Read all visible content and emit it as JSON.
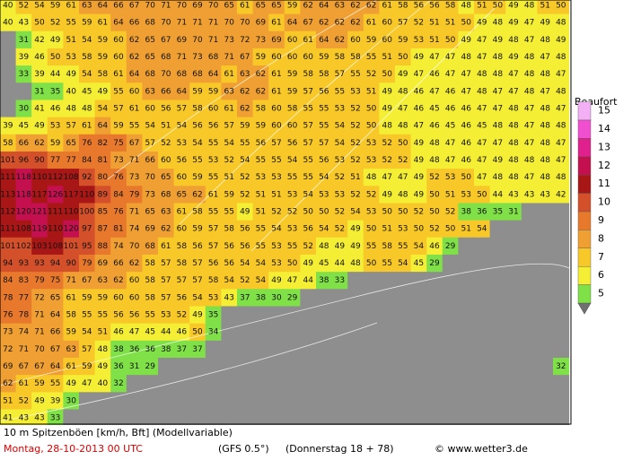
{
  "map": {
    "rows": [
      [
        40,
        52,
        54,
        59,
        61,
        63,
        64,
        66,
        67,
        70,
        71,
        70,
        69,
        70,
        65,
        61,
        65,
        65,
        59,
        62,
        64,
        63,
        62,
        62,
        61,
        58,
        56,
        56,
        58,
        48,
        51,
        50,
        49,
        48,
        51,
        50
      ],
      [
        40,
        43,
        50,
        52,
        55,
        59,
        61,
        64,
        66,
        68,
        70,
        71,
        71,
        71,
        70,
        70,
        69,
        61,
        64,
        67,
        62,
        62,
        62,
        61,
        60,
        57,
        52,
        51,
        51,
        50,
        49,
        48,
        49,
        47,
        49,
        48
      ],
      [
        null,
        31,
        42,
        49,
        51,
        54,
        59,
        60,
        62,
        65,
        67,
        69,
        70,
        71,
        73,
        72,
        73,
        69,
        60,
        61,
        64,
        62,
        60,
        59,
        60,
        59,
        53,
        51,
        50,
        49,
        47,
        49,
        48,
        47,
        48,
        49
      ],
      [
        null,
        39,
        46,
        50,
        53,
        58,
        59,
        60,
        62,
        65,
        68,
        71,
        73,
        68,
        71,
        67,
        59,
        60,
        60,
        60,
        59,
        58,
        58,
        55,
        51,
        50,
        49,
        47,
        47,
        48,
        47,
        48,
        49,
        48,
        47,
        48
      ],
      [
        null,
        33,
        39,
        44,
        49,
        54,
        58,
        61,
        64,
        68,
        70,
        68,
        68,
        64,
        61,
        63,
        62,
        61,
        59,
        58,
        58,
        57,
        55,
        52,
        50,
        49,
        47,
        46,
        47,
        47,
        48,
        48,
        47,
        48,
        48,
        47
      ],
      [
        null,
        null,
        31,
        35,
        40,
        45,
        49,
        55,
        60,
        63,
        66,
        64,
        59,
        59,
        63,
        62,
        62,
        61,
        59,
        57,
        56,
        55,
        53,
        51,
        49,
        48,
        46,
        47,
        46,
        47,
        48,
        47,
        47,
        48,
        47,
        48
      ],
      [
        null,
        30,
        41,
        46,
        48,
        48,
        54,
        57,
        61,
        60,
        56,
        57,
        58,
        60,
        61,
        62,
        58,
        60,
        58,
        55,
        55,
        53,
        52,
        50,
        49,
        47,
        46,
        45,
        46,
        46,
        47,
        47,
        48,
        47,
        48,
        47
      ],
      [
        39,
        45,
        49,
        53,
        57,
        61,
        64,
        59,
        55,
        54,
        51,
        54,
        56,
        56,
        57,
        59,
        59,
        60,
        60,
        57,
        55,
        54,
        52,
        50,
        48,
        48,
        47,
        46,
        45,
        46,
        45,
        48,
        48,
        47,
        48,
        48
      ],
      [
        58,
        66,
        62,
        59,
        65,
        76,
        82,
        75,
        67,
        57,
        52,
        53,
        54,
        55,
        54,
        55,
        56,
        57,
        56,
        57,
        57,
        54,
        52,
        53,
        52,
        50,
        49,
        48,
        47,
        46,
        47,
        47,
        48,
        47,
        48,
        47
      ],
      [
        101,
        96,
        90,
        77,
        77,
        84,
        81,
        73,
        71,
        66,
        60,
        56,
        55,
        53,
        52,
        54,
        55,
        55,
        54,
        55,
        56,
        53,
        52,
        53,
        52,
        52,
        49,
        48,
        47,
        46,
        47,
        49,
        48,
        48,
        48,
        47
      ],
      [
        111,
        118,
        110,
        112,
        108,
        92,
        80,
        76,
        73,
        70,
        65,
        60,
        59,
        55,
        51,
        52,
        53,
        53,
        55,
        55,
        54,
        52,
        51,
        48,
        47,
        47,
        49,
        52,
        53,
        50,
        47,
        48,
        48,
        47,
        48,
        48
      ],
      [
        113,
        118,
        117,
        126,
        117,
        110,
        89,
        84,
        79,
        73,
        68,
        65,
        62,
        61,
        59,
        52,
        51,
        51,
        53,
        54,
        53,
        53,
        52,
        52,
        49,
        48,
        49,
        50,
        51,
        53,
        50,
        44,
        43,
        43,
        43,
        42
      ],
      [
        112,
        120,
        121,
        111,
        110,
        100,
        85,
        76,
        71,
        65,
        63,
        61,
        58,
        55,
        55,
        49,
        51,
        52,
        52,
        50,
        50,
        52,
        54,
        53,
        50,
        50,
        52,
        50,
        52,
        38,
        36,
        35,
        31
      ],
      [
        111,
        108,
        119,
        110,
        120,
        97,
        87,
        81,
        74,
        69,
        62,
        60,
        59,
        57,
        58,
        56,
        55,
        54,
        53,
        56,
        54,
        52,
        49,
        50,
        51,
        53,
        50,
        52,
        50,
        51,
        54
      ],
      [
        101,
        102,
        103,
        108,
        101,
        95,
        88,
        74,
        70,
        68,
        61,
        58,
        56,
        57,
        56,
        56,
        55,
        53,
        55,
        52,
        48,
        49,
        49,
        55,
        58,
        55,
        54,
        46,
        29
      ],
      [
        94,
        93,
        93,
        94,
        90,
        79,
        69,
        66,
        62,
        58,
        57,
        58,
        57,
        56,
        56,
        54,
        54,
        53,
        50,
        49,
        45,
        44,
        48,
        50,
        55,
        54,
        45,
        29
      ],
      [
        84,
        83,
        79,
        75,
        71,
        67,
        63,
        62,
        60,
        58,
        57,
        57,
        57,
        58,
        54,
        52,
        54,
        49,
        47,
        44,
        38,
        33
      ],
      [
        78,
        77,
        72,
        65,
        61,
        59,
        59,
        60,
        60,
        58,
        57,
        56,
        54,
        53,
        43,
        37,
        38,
        30,
        29
      ],
      [
        76,
        78,
        71,
        64,
        58,
        55,
        55,
        56,
        56,
        55,
        53,
        52,
        49,
        35
      ],
      [
        73,
        74,
        71,
        66,
        59,
        54,
        51,
        46,
        47,
        45,
        44,
        46,
        50,
        34
      ],
      [
        72,
        71,
        70,
        67,
        63,
        57,
        48,
        38,
        36,
        36,
        38,
        37,
        37
      ],
      [
        69,
        67,
        67,
        64,
        61,
        59,
        49,
        36,
        31,
        29,
        null,
        null,
        null,
        null,
        null,
        null,
        null,
        null,
        null,
        null,
        null,
        null,
        null,
        null,
        null,
        null,
        null,
        null,
        null,
        null,
        null,
        null,
        null,
        null,
        null,
        32
      ],
      [
        62,
        61,
        59,
        55,
        49,
        47,
        40,
        32
      ],
      [
        51,
        52,
        49,
        39,
        30
      ],
      [
        41,
        43,
        43,
        33
      ]
    ]
  },
  "legend": {
    "title": "Beaufort",
    "levels": [
      {
        "label": 15,
        "color": "#f4b0f4"
      },
      {
        "label": 14,
        "color": "#f050d0"
      },
      {
        "label": 13,
        "color": "#e0208c"
      },
      {
        "label": 12,
        "color": "#c4104e"
      },
      {
        "label": 11,
        "color": "#a81616"
      },
      {
        "label": 10,
        "color": "#d4502a"
      },
      {
        "label": 9,
        "color": "#e8782c"
      },
      {
        "label": 8,
        "color": "#f0a032"
      },
      {
        "label": 7,
        "color": "#f8c828"
      },
      {
        "label": 6,
        "color": "#f4ee34"
      },
      {
        "label": 5,
        "color": "#80e048"
      }
    ]
  },
  "footer": {
    "title": "10 m Spitzenböen [km/h, Bft] (Modellvariable)",
    "date": "Montag, 28-10-2013  00 UTC",
    "model": "(GFS 0.5°)",
    "run": "(Donnerstag 18 + 78)",
    "copyright": "© www.wetter3.de"
  }
}
